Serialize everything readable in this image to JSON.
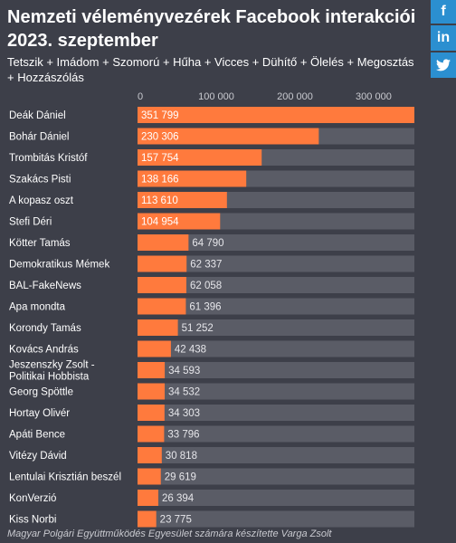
{
  "title": "Nemzeti véleményvezérek Facebook interakciói 2023. szeptember",
  "subtitle": "Tetszik + Imádom + Szomorú + Hűha + Vicces + Dühítő + Ölelés + Megosztás + Hozzászólás",
  "share": {
    "facebook": "f",
    "linkedin": "in",
    "twitter": "twitter-bird"
  },
  "footer": "Magyar Polgári Együttműködés Egyesület számára készítette Varga Zsolt",
  "colors": {
    "bar": "#ff7a3d",
    "track": "#5a5c66",
    "background": "#3d3f49",
    "share": "#2b8fd0"
  },
  "chart_data": {
    "type": "bar",
    "orientation": "horizontal",
    "xlim": [
      0,
      351799
    ],
    "ticks": [
      {
        "value": 0,
        "label": "0"
      },
      {
        "value": 100000,
        "label": "100 000"
      },
      {
        "value": 200000,
        "label": "200 000"
      },
      {
        "value": 300000,
        "label": "300 000"
      }
    ],
    "categories": [
      "Deák Dániel",
      "Bohár Dániel",
      "Trombitás Kristóf",
      "Szakács Pisti",
      "A kopasz oszt",
      "Stefi Déri",
      "Kötter Tamás",
      "Demokratikus Mémek",
      "BAL-FakeNews",
      "Apa mondta",
      "Korondy Tamás",
      "Kovács András",
      "Jeszenszky Zsolt - Politikai Hobbista",
      "Georg Spöttle",
      "Hortay Olivér",
      "Apáti Bence",
      "Vitézy Dávid",
      "Lentulai Krisztián beszél",
      "KonVerzió",
      "Kiss Norbi"
    ],
    "values": [
      351799,
      230306,
      157754,
      138166,
      113610,
      104954,
      64790,
      62337,
      62058,
      61396,
      51252,
      42438,
      34593,
      34532,
      34303,
      33796,
      30818,
      29619,
      26394,
      23775
    ],
    "value_labels": [
      "351 799",
      "230 306",
      "157 754",
      "138 166",
      "113 610",
      "104 954",
      "64 790",
      "62 337",
      "62 058",
      "61 396",
      "51 252",
      "42 438",
      "34 593",
      "34 532",
      "34 303",
      "33 796",
      "30 818",
      "29 619",
      "26 394",
      "23 775"
    ]
  }
}
